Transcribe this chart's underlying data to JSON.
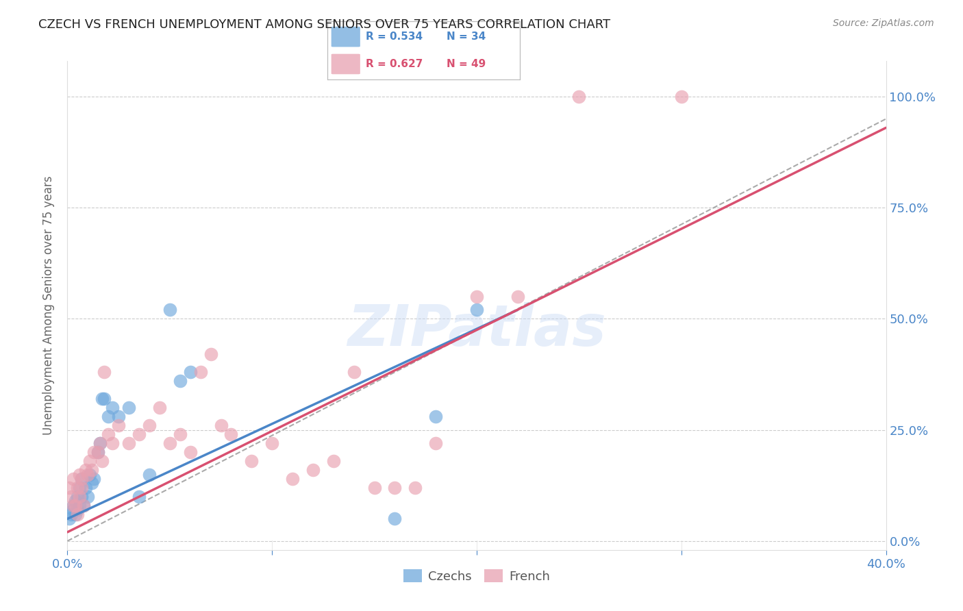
{
  "title": "CZECH VS FRENCH UNEMPLOYMENT AMONG SENIORS OVER 75 YEARS CORRELATION CHART",
  "source": "Source: ZipAtlas.com",
  "ylabel": "Unemployment Among Seniors over 75 years",
  "xlim": [
    0,
    0.4
  ],
  "ylim": [
    -0.02,
    1.08
  ],
  "xticks": [
    0.0,
    0.1,
    0.2,
    0.3,
    0.4
  ],
  "xticklabels_show": [
    "0.0%",
    "",
    "",
    "",
    "40.0%"
  ],
  "yticks": [
    0.0,
    0.25,
    0.5,
    0.75,
    1.0
  ],
  "yticklabels": [
    "0.0%",
    "25.0%",
    "50.0%",
    "75.0%",
    "100.0%"
  ],
  "czech_color": "#6fa8dc",
  "french_color": "#e8a0b0",
  "czech_line_color": "#4a86c8",
  "french_line_color": "#d85070",
  "legend_czech_R": "R = 0.534",
  "legend_czech_N": "N = 34",
  "legend_french_R": "R = 0.627",
  "legend_french_N": "N = 49",
  "watermark": "ZIPatlas",
  "background_color": "#ffffff",
  "grid_color": "#cccccc",
  "tick_color": "#4a86c8",
  "title_color": "#222222",
  "source_color": "#888888",
  "czech_x": [
    0.001,
    0.002,
    0.003,
    0.003,
    0.004,
    0.004,
    0.005,
    0.005,
    0.006,
    0.006,
    0.007,
    0.007,
    0.008,
    0.009,
    0.01,
    0.011,
    0.012,
    0.013,
    0.015,
    0.016,
    0.017,
    0.018,
    0.02,
    0.022,
    0.025,
    0.03,
    0.035,
    0.04,
    0.05,
    0.055,
    0.06,
    0.16,
    0.18,
    0.2
  ],
  "czech_y": [
    0.05,
    0.06,
    0.07,
    0.08,
    0.06,
    0.09,
    0.07,
    0.1,
    0.08,
    0.12,
    0.1,
    0.14,
    0.08,
    0.12,
    0.1,
    0.15,
    0.13,
    0.14,
    0.2,
    0.22,
    0.32,
    0.32,
    0.28,
    0.3,
    0.28,
    0.3,
    0.1,
    0.15,
    0.52,
    0.36,
    0.38,
    0.05,
    0.28,
    0.52
  ],
  "french_x": [
    0.001,
    0.002,
    0.003,
    0.003,
    0.004,
    0.005,
    0.005,
    0.006,
    0.006,
    0.007,
    0.007,
    0.008,
    0.009,
    0.01,
    0.011,
    0.012,
    0.013,
    0.015,
    0.016,
    0.017,
    0.018,
    0.02,
    0.022,
    0.025,
    0.03,
    0.035,
    0.04,
    0.045,
    0.05,
    0.055,
    0.06,
    0.065,
    0.07,
    0.075,
    0.08,
    0.09,
    0.1,
    0.11,
    0.12,
    0.13,
    0.14,
    0.15,
    0.16,
    0.17,
    0.18,
    0.2,
    0.22,
    0.25,
    0.3
  ],
  "french_y": [
    0.12,
    0.1,
    0.08,
    0.14,
    0.08,
    0.12,
    0.06,
    0.1,
    0.15,
    0.12,
    0.14,
    0.08,
    0.16,
    0.15,
    0.18,
    0.16,
    0.2,
    0.2,
    0.22,
    0.18,
    0.38,
    0.24,
    0.22,
    0.26,
    0.22,
    0.24,
    0.26,
    0.3,
    0.22,
    0.24,
    0.2,
    0.38,
    0.42,
    0.26,
    0.24,
    0.18,
    0.22,
    0.14,
    0.16,
    0.18,
    0.38,
    0.12,
    0.12,
    0.12,
    0.22,
    0.55,
    0.55,
    1.0,
    1.0
  ],
  "czech_line_x0": 0.0,
  "czech_line_x1": 0.22,
  "czech_line_y0": 0.05,
  "czech_line_y1": 0.52,
  "french_line_x0": 0.0,
  "french_line_x1": 0.4,
  "french_line_y0": 0.02,
  "french_line_y1": 0.93,
  "ref_line_x0": 0.0,
  "ref_line_x1": 0.4,
  "ref_line_y0": 0.0,
  "ref_line_y1": 0.95
}
